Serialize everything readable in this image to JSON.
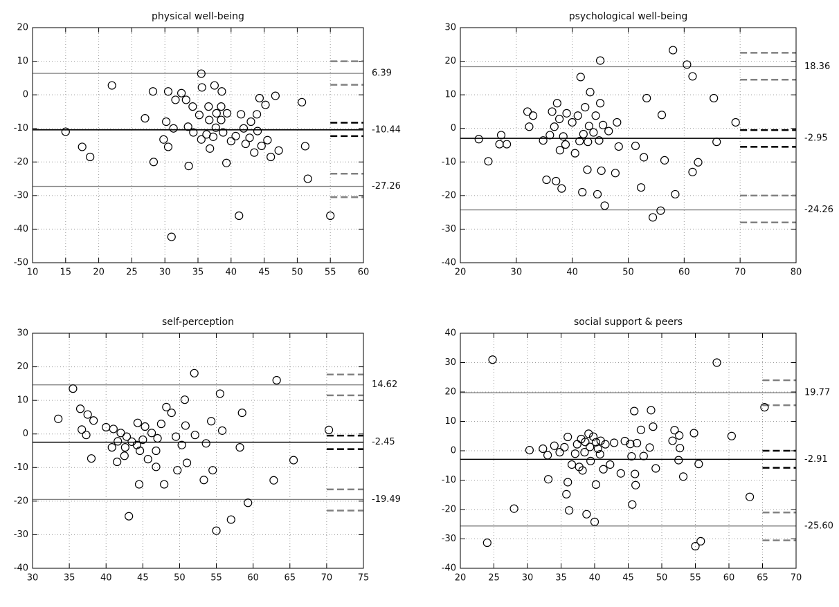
{
  "chart_data": [
    {
      "type": "scatter",
      "title": "physical well-being",
      "x": [
        15,
        17.5,
        18.7,
        22,
        27,
        28.2,
        28.3,
        29.8,
        30.2,
        30.5,
        30.5,
        31,
        31.3,
        31.6,
        32.5,
        33.2,
        33.5,
        33.6,
        34.2,
        34.3,
        35.2,
        35.5,
        35.6,
        35.5,
        36.3,
        36.6,
        36.7,
        36.8,
        37.3,
        37.5,
        37.8,
        37.7,
        38.5,
        38.6,
        38.5,
        38.8,
        39.4,
        39.3,
        40,
        40.7,
        41.2,
        41.5,
        41.9,
        42.2,
        42.8,
        43,
        43.5,
        43.9,
        44,
        44.3,
        44.6,
        45.2,
        45.5,
        46,
        46.7,
        47.2,
        50.7,
        51.2,
        51.6,
        55
      ],
      "y": [
        -11,
        -15.5,
        -18.5,
        2.8,
        -7,
        1,
        -20,
        -13.3,
        -8,
        1,
        -15.5,
        -42.3,
        -10,
        -1.5,
        0.5,
        -1.5,
        -9.5,
        -21.2,
        -3.5,
        -11.2,
        -6,
        6.3,
        2.2,
        -13.3,
        -11.8,
        -3.5,
        -7.5,
        -16,
        -12.5,
        2.8,
        -5.5,
        -9.8,
        -3.5,
        1,
        -7.5,
        -11.2,
        -5.5,
        -20.3,
        -13.8,
        -12.3,
        -36,
        -5.8,
        -10,
        -14.6,
        -12.8,
        -8,
        -17.2,
        -5.8,
        -10.8,
        -1,
        -15.2,
        -3,
        -13.5,
        -18.5,
        -0.3,
        -16.6,
        -2.2,
        -15.3,
        -25,
        -36
      ],
      "xlim": [
        10,
        60
      ],
      "xticks": [
        10,
        15,
        20,
        25,
        30,
        35,
        40,
        45,
        50,
        55,
        60
      ],
      "ylim": [
        -50,
        20
      ],
      "yticks": [
        -50,
        -40,
        -30,
        -20,
        -10,
        0,
        10,
        20
      ],
      "grid": true,
      "ci_x": [
        55,
        60
      ],
      "hlines": [
        {
          "value": 6.39,
          "color": "#808080",
          "ci": [
            10,
            3
          ]
        },
        {
          "value": -10.44,
          "color": "#000000",
          "ci": [
            -8.3,
            -12.3
          ]
        },
        {
          "value": -27.26,
          "color": "#808080",
          "ci": [
            -23.5,
            -30.5
          ]
        }
      ]
    },
    {
      "type": "scatter",
      "title": "psychological well-being",
      "x": [
        23.3,
        25,
        27,
        27.3,
        28.3,
        32,
        32.3,
        33,
        34.8,
        35.4,
        36,
        36.4,
        36.8,
        37.1,
        37.3,
        37.7,
        37.8,
        38.1,
        38.4,
        38.8,
        39,
        40,
        40.5,
        41,
        41.3,
        41.5,
        41.8,
        42,
        42.3,
        42.7,
        42.8,
        43,
        43.2,
        43.8,
        44.2,
        44.5,
        44.8,
        45,
        45,
        45.2,
        45.5,
        45.8,
        46.5,
        47.7,
        48,
        48.3,
        51.3,
        52.3,
        52.8,
        53.3,
        54.4,
        55.8,
        56,
        56.5,
        58,
        58.4,
        60.5,
        61.5,
        61.5,
        62.5,
        65.3,
        65.8,
        69.2
      ],
      "y": [
        -3.2,
        -9.8,
        -4.7,
        -2,
        -4.7,
        5,
        0.5,
        3.8,
        -3.6,
        -15.3,
        -2,
        5,
        0.5,
        -15.7,
        7.5,
        2.8,
        -6.5,
        -17.9,
        -2.4,
        -4.8,
        4.5,
        1.8,
        -7.4,
        3.8,
        -3.8,
        15.3,
        -19,
        -1.7,
        6.3,
        -12.3,
        -4,
        0.7,
        10.8,
        -1.2,
        3.8,
        -19.6,
        -3.6,
        7.5,
        20.2,
        -12.6,
        1,
        -23,
        -0.8,
        -13.3,
        1.8,
        -5.4,
        -5.2,
        -17.6,
        -8.6,
        9,
        -26.5,
        -24.5,
        4,
        -9.5,
        23.3,
        -19.6,
        19,
        15.5,
        -13,
        -10.1,
        9,
        -4,
        1.8
      ],
      "xlim": [
        20,
        80
      ],
      "xticks": [
        20,
        30,
        40,
        50,
        60,
        70,
        80
      ],
      "ylim": [
        -40,
        30
      ],
      "yticks": [
        -40,
        -30,
        -20,
        -10,
        0,
        10,
        20,
        30
      ],
      "grid": true,
      "ci_x": [
        70,
        80
      ],
      "hlines": [
        {
          "value": 18.36,
          "color": "#808080",
          "ci": [
            22.5,
            14.5
          ]
        },
        {
          "value": -2.95,
          "color": "#000000",
          "ci": [
            -0.5,
            -5.5
          ]
        },
        {
          "value": -24.26,
          "color": "#808080",
          "ci": [
            -20,
            -28
          ]
        }
      ]
    },
    {
      "type": "scatter",
      "title": "self-perception",
      "x": [
        33.5,
        35.5,
        36.5,
        36.7,
        37.3,
        37.5,
        38,
        38.3,
        40,
        40.8,
        41,
        41.5,
        41.6,
        42,
        42.5,
        42.6,
        42.8,
        43.1,
        43.5,
        44.2,
        44.3,
        44.5,
        44.6,
        45,
        45.3,
        45.7,
        46.2,
        46.8,
        46.8,
        47,
        47.5,
        47.9,
        48.2,
        48.9,
        49.5,
        49.7,
        50.3,
        50.7,
        50.8,
        51,
        52,
        52.1,
        53.3,
        53.6,
        54.3,
        54.5,
        55,
        55.5,
        55.8,
        57,
        58.2,
        58.5,
        59.3,
        62.8,
        63.2,
        65.5,
        70.3
      ],
      "y": [
        4.5,
        13.5,
        7.5,
        1.3,
        -0.3,
        5.8,
        -7.3,
        4,
        2,
        -4,
        1.5,
        -8.3,
        -2.2,
        0.3,
        -6.5,
        -4,
        -0.8,
        -24.5,
        -2.3,
        -3.3,
        3.3,
        -15,
        -5,
        -1.7,
        2.2,
        -7.5,
        0.3,
        -5,
        -9.8,
        -1.3,
        3,
        -15,
        8,
        6.3,
        -0.8,
        -10.8,
        -3.3,
        10.2,
        2.5,
        -8.6,
        18.1,
        -0.3,
        -13.7,
        -2.8,
        3.8,
        -10.8,
        -28.8,
        12,
        1,
        -25.5,
        -4,
        6.3,
        -20.5,
        -13.8,
        16,
        -7.8,
        1.2
      ],
      "xlim": [
        30,
        75
      ],
      "xticks": [
        30,
        35,
        40,
        45,
        50,
        55,
        60,
        65,
        70,
        75
      ],
      "ylim": [
        -40,
        30
      ],
      "yticks": [
        -40,
        -30,
        -20,
        -10,
        0,
        10,
        20,
        30
      ],
      "grid": true,
      "ci_x": [
        70,
        75
      ],
      "hlines": [
        {
          "value": 14.62,
          "color": "#808080",
          "ci": [
            17.7,
            11.5
          ]
        },
        {
          "value": -2.45,
          "color": "#000000",
          "ci": [
            -0.5,
            -4.5
          ]
        },
        {
          "value": -19.49,
          "color": "#808080",
          "ci": [
            -16.5,
            -22.8
          ]
        }
      ]
    },
    {
      "type": "scatter",
      "title": "social support & peers",
      "x": [
        24,
        24.8,
        28,
        30.3,
        32.3,
        33,
        33.1,
        34,
        34.8,
        35.5,
        35.8,
        36,
        36,
        36.2,
        36.6,
        37.1,
        37.4,
        37.7,
        38,
        38.2,
        38.5,
        38.6,
        38.8,
        39.1,
        39.3,
        39.4,
        39.8,
        40,
        40.2,
        40.2,
        40.5,
        40.8,
        40.9,
        41.3,
        41.6,
        42.3,
        42.9,
        43.9,
        44.5,
        45.3,
        45.6,
        45.5,
        45.9,
        46,
        46.1,
        46.3,
        46.9,
        47.3,
        48.2,
        48.4,
        48.7,
        49.1,
        51.6,
        51.9,
        52.5,
        52.6,
        52.7,
        53.2,
        54.8,
        55,
        55.5,
        55.8,
        58.2,
        60.4,
        63.1,
        65.3
      ],
      "y": [
        -31.3,
        31,
        -19.7,
        0.2,
        0.7,
        -1.5,
        -9.7,
        1.7,
        -0.5,
        1.2,
        -14.8,
        -10.7,
        4.7,
        -20.3,
        -4.7,
        -1,
        2.2,
        -5.5,
        4,
        -6.7,
        -0.5,
        3,
        -21.6,
        5.8,
        1.3,
        -3.5,
        4.8,
        -24.2,
        2.9,
        -11.5,
        0.7,
        -1.2,
        3.4,
        -6.3,
        2.2,
        -4.7,
        2.7,
        -7.7,
        3.3,
        2.3,
        -18.3,
        -1.9,
        13.5,
        -7.9,
        -11.7,
        2.6,
        7.1,
        -1.8,
        1.1,
        13.8,
        8.2,
        -6,
        3.4,
        7,
        -3.2,
        5.2,
        0.9,
        -8.8,
        6,
        -32.5,
        -4.5,
        -30.8,
        30,
        5,
        -15.7,
        14.8
      ],
      "xlim": [
        20,
        70
      ],
      "xticks": [
        20,
        25,
        30,
        35,
        40,
        45,
        50,
        55,
        60,
        65,
        70
      ],
      "ylim": [
        -40,
        40
      ],
      "yticks": [
        -40,
        -30,
        -20,
        -10,
        0,
        10,
        20,
        30,
        40
      ],
      "grid": true,
      "ci_x": [
        65,
        70
      ],
      "hlines": [
        {
          "value": 19.77,
          "color": "#808080",
          "ci": [
            24,
            15.5
          ]
        },
        {
          "value": -2.91,
          "color": "#000000",
          "ci": [
            0,
            -5.8
          ]
        },
        {
          "value": -25.6,
          "label": "-25.60",
          "color": "#808080",
          "ci": [
            -21,
            -30.5
          ]
        }
      ]
    }
  ]
}
